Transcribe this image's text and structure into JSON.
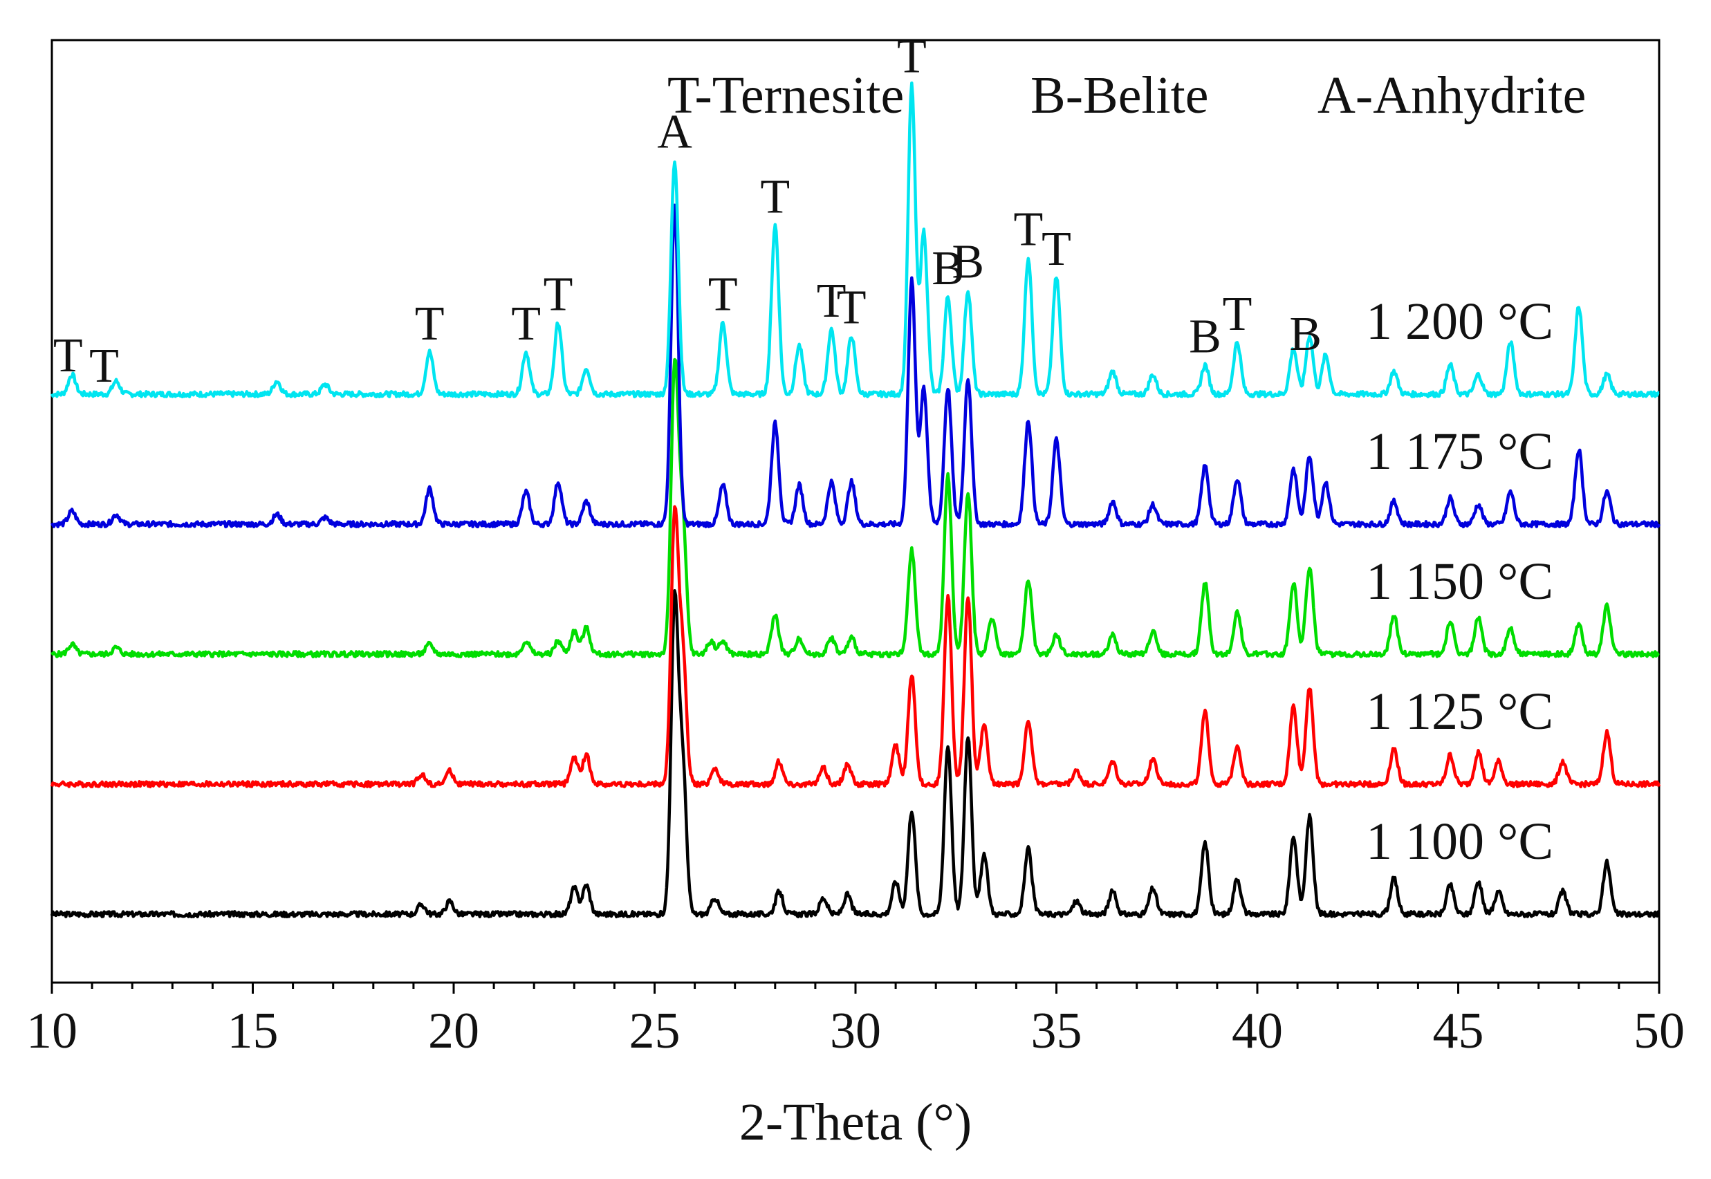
{
  "chart_data": {
    "type": "line",
    "title": "",
    "xlabel": "2-Theta (°)",
    "ylabel": "",
    "xlim": [
      10,
      50
    ],
    "x_ticks": [
      10,
      15,
      20,
      25,
      30,
      35,
      40,
      45,
      50
    ],
    "x_tick_labels": [
      "10",
      "15",
      "20",
      "25",
      "30",
      "35",
      "40",
      "45",
      "50"
    ],
    "legend": [
      {
        "text": "T-Ternesite"
      },
      {
        "text": "B-Belite"
      },
      {
        "text": "A-Anhydrite"
      }
    ],
    "series": [
      {
        "name": "1 100 °C",
        "label": "1 100 °C",
        "color": "#000000",
        "baseline": 0,
        "peaks": [
          [
            19.2,
            3
          ],
          [
            19.9,
            4
          ],
          [
            23.0,
            8
          ],
          [
            23.3,
            9
          ],
          [
            25.5,
            95
          ],
          [
            25.7,
            45
          ],
          [
            26.5,
            5
          ],
          [
            28.1,
            7
          ],
          [
            29.2,
            5
          ],
          [
            29.8,
            6
          ],
          [
            31.0,
            10
          ],
          [
            31.4,
            32
          ],
          [
            32.3,
            52
          ],
          [
            32.8,
            55
          ],
          [
            33.2,
            18
          ],
          [
            34.3,
            20
          ],
          [
            35.5,
            4
          ],
          [
            36.4,
            7
          ],
          [
            37.4,
            8
          ],
          [
            38.7,
            22
          ],
          [
            39.5,
            11
          ],
          [
            40.9,
            24
          ],
          [
            41.3,
            30
          ],
          [
            43.4,
            11
          ],
          [
            44.8,
            9
          ],
          [
            45.5,
            10
          ],
          [
            46.0,
            7
          ],
          [
            47.6,
            7
          ],
          [
            48.7,
            16
          ]
        ]
      },
      {
        "name": "1 125 °C",
        "label": "1 125 °C",
        "color": "#ff0000",
        "baseline": 1,
        "peaks": [
          [
            19.2,
            3
          ],
          [
            19.9,
            4
          ],
          [
            23.0,
            8
          ],
          [
            23.3,
            9
          ],
          [
            25.5,
            82
          ],
          [
            25.7,
            40
          ],
          [
            26.5,
            5
          ],
          [
            28.1,
            7
          ],
          [
            29.2,
            5
          ],
          [
            29.8,
            6
          ],
          [
            31.0,
            12
          ],
          [
            31.4,
            34
          ],
          [
            32.3,
            58
          ],
          [
            32.8,
            58
          ],
          [
            33.2,
            18
          ],
          [
            34.3,
            20
          ],
          [
            35.5,
            4
          ],
          [
            36.4,
            7
          ],
          [
            37.4,
            8
          ],
          [
            38.7,
            22
          ],
          [
            39.5,
            12
          ],
          [
            40.9,
            24
          ],
          [
            41.3,
            30
          ],
          [
            43.4,
            11
          ],
          [
            44.8,
            9
          ],
          [
            45.5,
            10
          ],
          [
            46.0,
            7
          ],
          [
            47.6,
            7
          ],
          [
            48.7,
            16
          ]
        ]
      },
      {
        "name": "1 150 °C",
        "label": "1 150 °C",
        "color": "#00dd00",
        "baseline": 2,
        "peaks": [
          [
            10.5,
            3
          ],
          [
            11.6,
            2
          ],
          [
            19.4,
            3
          ],
          [
            21.8,
            4
          ],
          [
            22.6,
            4
          ],
          [
            23.0,
            7
          ],
          [
            23.3,
            8
          ],
          [
            25.5,
            88
          ],
          [
            25.7,
            40
          ],
          [
            26.4,
            4
          ],
          [
            26.7,
            4
          ],
          [
            28.0,
            12
          ],
          [
            28.6,
            5
          ],
          [
            29.4,
            5
          ],
          [
            29.9,
            5
          ],
          [
            31.4,
            32
          ],
          [
            32.3,
            55
          ],
          [
            32.8,
            50
          ],
          [
            33.4,
            11
          ],
          [
            34.3,
            23
          ],
          [
            35.0,
            6
          ],
          [
            36.4,
            6
          ],
          [
            37.4,
            7
          ],
          [
            38.7,
            22
          ],
          [
            39.5,
            13
          ],
          [
            40.9,
            22
          ],
          [
            41.3,
            27
          ],
          [
            43.4,
            12
          ],
          [
            44.8,
            10
          ],
          [
            45.5,
            11
          ],
          [
            46.3,
            8
          ],
          [
            48.0,
            9
          ],
          [
            48.7,
            15
          ]
        ]
      },
      {
        "name": "1 175 °C",
        "label": "1 175 °C",
        "color": "#0000dd",
        "baseline": 3,
        "peaks": [
          [
            10.5,
            4
          ],
          [
            11.6,
            3
          ],
          [
            15.6,
            3
          ],
          [
            16.8,
            2
          ],
          [
            19.4,
            11
          ],
          [
            21.8,
            10
          ],
          [
            22.6,
            13
          ],
          [
            23.3,
            7
          ],
          [
            25.5,
            98
          ],
          [
            26.7,
            12
          ],
          [
            28.0,
            31
          ],
          [
            28.6,
            12
          ],
          [
            29.4,
            13
          ],
          [
            29.9,
            13
          ],
          [
            31.4,
            75
          ],
          [
            31.7,
            42
          ],
          [
            32.3,
            42
          ],
          [
            32.8,
            45
          ],
          [
            34.3,
            32
          ],
          [
            35.0,
            26
          ],
          [
            36.4,
            7
          ],
          [
            37.4,
            6
          ],
          [
            38.7,
            18
          ],
          [
            39.5,
            14
          ],
          [
            40.9,
            17
          ],
          [
            41.3,
            21
          ],
          [
            41.7,
            13
          ],
          [
            43.4,
            7
          ],
          [
            44.8,
            8
          ],
          [
            45.5,
            6
          ],
          [
            46.3,
            10
          ],
          [
            48.0,
            23
          ],
          [
            48.7,
            10
          ]
        ]
      },
      {
        "name": "1 200 °C",
        "label": "1 200 °C",
        "color": "#00e5f0",
        "baseline": 4,
        "peaks": [
          [
            10.5,
            6
          ],
          [
            11.6,
            4
          ],
          [
            15.6,
            4
          ],
          [
            16.8,
            3
          ],
          [
            19.4,
            13
          ],
          [
            21.8,
            13
          ],
          [
            22.6,
            22
          ],
          [
            23.3,
            8
          ],
          [
            25.5,
            72
          ],
          [
            26.7,
            22
          ],
          [
            28.0,
            52
          ],
          [
            28.6,
            15
          ],
          [
            29.4,
            20
          ],
          [
            29.9,
            18
          ],
          [
            31.4,
            95
          ],
          [
            31.7,
            50
          ],
          [
            32.3,
            30
          ],
          [
            32.8,
            32
          ],
          [
            34.3,
            42
          ],
          [
            35.0,
            36
          ],
          [
            36.4,
            7
          ],
          [
            37.4,
            6
          ],
          [
            38.7,
            9
          ],
          [
            39.5,
            16
          ],
          [
            40.9,
            14
          ],
          [
            41.3,
            18
          ],
          [
            41.7,
            12
          ],
          [
            43.4,
            7
          ],
          [
            44.8,
            9
          ],
          [
            45.5,
            6
          ],
          [
            46.3,
            16
          ],
          [
            48.0,
            27
          ],
          [
            48.7,
            6
          ]
        ]
      }
    ],
    "peak_labels": [
      {
        "text": "T",
        "x": 10.4,
        "series": "1 200 °C"
      },
      {
        "text": "T",
        "x": 11.3,
        "series": "1 200 °C"
      },
      {
        "text": "T",
        "x": 19.4,
        "series": "1 200 °C"
      },
      {
        "text": "T",
        "x": 21.8,
        "series": "1 200 °C"
      },
      {
        "text": "T",
        "x": 22.6,
        "series": "1 200 °C"
      },
      {
        "text": "A",
        "x": 25.5,
        "series": "1 200 °C"
      },
      {
        "text": "T",
        "x": 26.7,
        "series": "1 200 °C"
      },
      {
        "text": "T",
        "x": 28.0,
        "series": "1 200 °C"
      },
      {
        "text": "T",
        "x": 29.4,
        "series": "1 200 °C"
      },
      {
        "text": "T",
        "x": 29.9,
        "series": "1 200 °C"
      },
      {
        "text": "T",
        "x": 31.4,
        "series": "1 200 °C"
      },
      {
        "text": "B",
        "x": 32.3,
        "series": "1 200 °C"
      },
      {
        "text": "B",
        "x": 32.8,
        "series": "1 200 °C"
      },
      {
        "text": "T",
        "x": 34.3,
        "series": "1 200 °C"
      },
      {
        "text": "T",
        "x": 35.0,
        "series": "1 200 °C"
      },
      {
        "text": "B",
        "x": 38.7,
        "series": "1 200 °C"
      },
      {
        "text": "T",
        "x": 39.5,
        "series": "1 200 °C"
      },
      {
        "text": "B",
        "x": 41.2,
        "series": "1 200 °C"
      }
    ]
  }
}
